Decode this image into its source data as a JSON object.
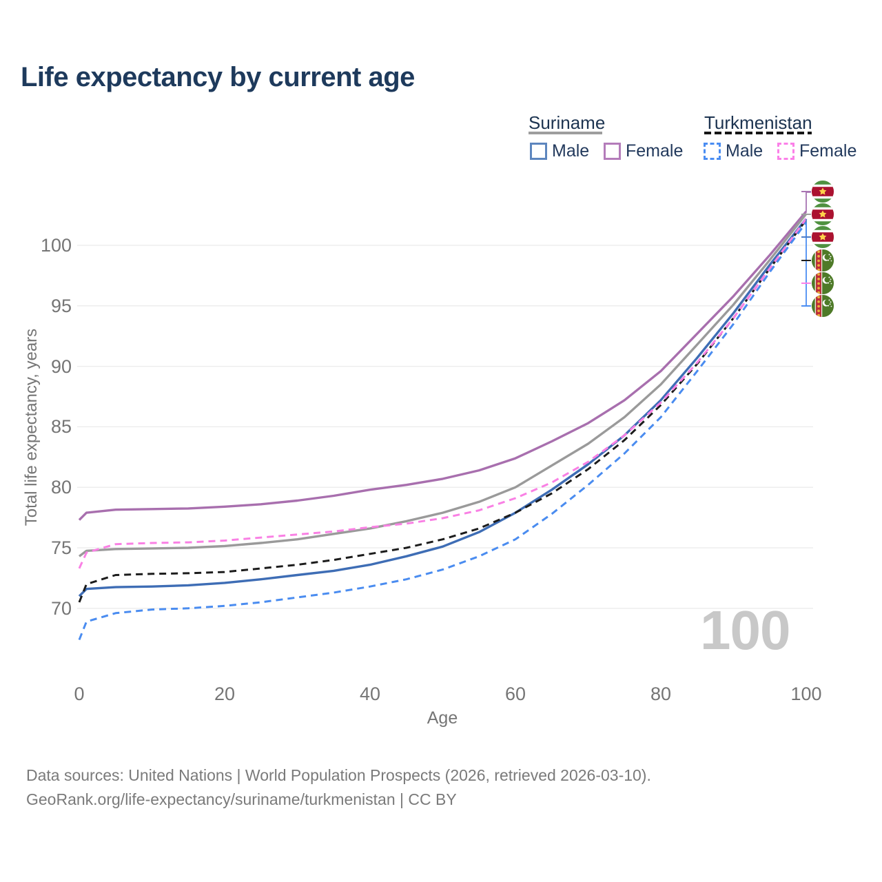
{
  "title": "Life expectancy by current age",
  "watermark": "100",
  "legend": {
    "suriname": {
      "header": "Suriname",
      "male": "Male",
      "female": "Female"
    },
    "turkmenistan": {
      "header": "Turkmenistan",
      "male": "Male",
      "female": "Female"
    }
  },
  "axis": {
    "y_title": "Total life expectancy, years",
    "x_title": "Age",
    "yticks": [
      "100",
      "95",
      "90",
      "85",
      "80",
      "75",
      "70"
    ],
    "xticks": [
      "0",
      "20",
      "40",
      "60",
      "80",
      "100"
    ]
  },
  "end_labels": [
    {
      "flag": "suriname",
      "value": "103",
      "color": "#a874b2"
    },
    {
      "flag": "suriname",
      "value": "103",
      "color": "#9e9e9e"
    },
    {
      "flag": "suriname",
      "value": "102",
      "color": "#4a7cc9"
    },
    {
      "flag": "turkmenistan",
      "value": "102",
      "color": "#1c1c1c"
    },
    {
      "flag": "turkmenistan",
      "value": "102",
      "color": "#fb80e8"
    },
    {
      "flag": "turkmenistan",
      "value": "102",
      "color": "#4a8df2"
    }
  ],
  "footer": {
    "line1": "Data sources: United Nations | World Population Prospects (2026, retrieved 2026-03-10).",
    "line2": "GeoRank.org/life-expectancy/suriname/turkmenistan | CC BY"
  },
  "colors": {
    "title": "#1e3a5c",
    "axis_text": "#757575",
    "gridline": "#ebebeb",
    "watermark": "#c8c8c8",
    "suriname_female": "#a86fae",
    "suriname_total": "#9a9a9a",
    "suriname_male": "#3e6db5",
    "turkmenistan_total": "#1c1c1c",
    "turkmenistan_female": "#f980e4",
    "turkmenistan_male": "#4a8cf0"
  },
  "chart_data": {
    "type": "line",
    "title": "Life expectancy by current age",
    "xlabel": "Age",
    "ylabel": "Total life expectancy, years",
    "xlim": [
      0,
      100
    ],
    "ylim": [
      66,
      104
    ],
    "grid": "horizontal",
    "legend_position": "top-right",
    "ytick_values": [
      100,
      95,
      90,
      85,
      80,
      75,
      70
    ],
    "xtick_values": [
      0,
      20,
      40,
      60,
      80,
      100
    ],
    "x": [
      0,
      1,
      5,
      10,
      15,
      20,
      25,
      30,
      35,
      40,
      45,
      50,
      55,
      60,
      65,
      70,
      75,
      80,
      85,
      90,
      95,
      100
    ],
    "series": [
      {
        "name": "Suriname Female",
        "country": "Suriname",
        "sex": "Female",
        "style": "solid",
        "color": "#a86fae",
        "values": [
          77.3,
          77.9,
          78.15,
          78.2,
          78.25,
          78.4,
          78.6,
          78.9,
          79.3,
          79.8,
          80.2,
          80.7,
          81.4,
          82.4,
          83.8,
          85.3,
          87.2,
          89.6,
          92.7,
          95.8,
          99.2,
          102.8
        ]
      },
      {
        "name": "Suriname Both sexes",
        "country": "Suriname",
        "sex": "Both",
        "style": "solid",
        "color": "#9a9a9a",
        "values": [
          74.3,
          74.75,
          74.9,
          74.95,
          75.0,
          75.15,
          75.4,
          75.7,
          76.15,
          76.6,
          77.2,
          77.9,
          78.8,
          80.0,
          81.8,
          83.6,
          85.8,
          88.5,
          91.8,
          95.1,
          98.8,
          102.6
        ]
      },
      {
        "name": "Suriname Male",
        "country": "Suriname",
        "sex": "Male",
        "style": "solid",
        "color": "#3e6db5",
        "values": [
          71.0,
          71.6,
          71.75,
          71.8,
          71.9,
          72.1,
          72.4,
          72.75,
          73.1,
          73.6,
          74.3,
          75.1,
          76.3,
          77.9,
          79.8,
          81.9,
          84.3,
          87.2,
          90.7,
          94.4,
          98.4,
          102.2
        ]
      },
      {
        "name": "Turkmenistan Both sexes",
        "country": "Turkmenistan",
        "sex": "Both",
        "style": "dashed",
        "color": "#1c1c1c",
        "values": [
          70.5,
          72.0,
          72.75,
          72.85,
          72.9,
          73.0,
          73.3,
          73.6,
          74.0,
          74.5,
          75.0,
          75.7,
          76.6,
          77.9,
          79.5,
          81.5,
          83.9,
          86.8,
          90.2,
          94.0,
          98.1,
          102.1
        ]
      },
      {
        "name": "Turkmenistan Female",
        "country": "Turkmenistan",
        "sex": "Female",
        "style": "dashed",
        "color": "#f980e4",
        "values": [
          73.3,
          74.6,
          75.3,
          75.4,
          75.45,
          75.6,
          75.85,
          76.1,
          76.35,
          76.7,
          77.0,
          77.45,
          78.1,
          79.1,
          80.4,
          82.1,
          84.3,
          87.0,
          90.3,
          94.0,
          98.1,
          102.2
        ]
      },
      {
        "name": "Turkmenistan Male",
        "country": "Turkmenistan",
        "sex": "Male",
        "style": "dashed",
        "color": "#4a8cf0",
        "values": [
          67.4,
          68.9,
          69.6,
          69.9,
          70.0,
          70.2,
          70.5,
          70.9,
          71.3,
          71.8,
          72.4,
          73.2,
          74.3,
          75.7,
          77.8,
          80.2,
          82.8,
          85.8,
          89.6,
          93.5,
          97.8,
          101.9
        ]
      }
    ]
  }
}
